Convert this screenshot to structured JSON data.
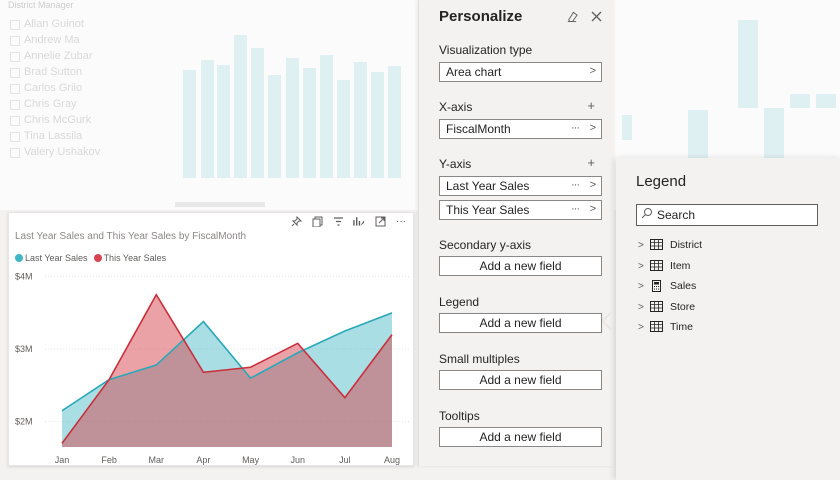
{
  "background": {
    "slicer_title": "District Manager",
    "slicer_items": [
      "Allan Guinot",
      "Andrew Ma",
      "Annelie Zubar",
      "Brad Sutton",
      "Carlos Grilo",
      "Chris Gray",
      "Chris McGurk",
      "Tina Lassila",
      "Valery Ushakov"
    ]
  },
  "visual": {
    "title": "Last Year Sales and This Year Sales by FiscalMonth",
    "header_icons": [
      "pin-icon",
      "copy-icon",
      "filter-icon",
      "personalize-icon",
      "focus-mode-icon",
      "more-options-icon"
    ]
  },
  "chart_data": {
    "type": "area",
    "title": "Last Year Sales and This Year Sales by FiscalMonth",
    "categories": [
      "Jan",
      "Feb",
      "Mar",
      "Apr",
      "May",
      "Jun",
      "Jul",
      "Aug"
    ],
    "series": [
      {
        "name": "Last Year Sales",
        "color": "#41b6c4",
        "values": [
          2.15,
          2.58,
          2.78,
          3.38,
          2.6,
          2.95,
          3.25,
          3.5
        ]
      },
      {
        "name": "This Year Sales",
        "color": "#d64550",
        "values": [
          1.7,
          2.58,
          3.75,
          2.68,
          2.75,
          3.08,
          2.33,
          3.2
        ]
      }
    ],
    "y_ticks": [
      "$2M",
      "$3M",
      "$4M"
    ],
    "y_tick_values": [
      2,
      3,
      4
    ],
    "ylim": [
      1.65,
      4.05
    ],
    "grid": true,
    "legend": "top-left"
  },
  "personalize": {
    "title": "Personalize",
    "visualization_type_label": "Visualization type",
    "visualization_type_value": "Area chart",
    "xaxis_label": "X-axis",
    "xaxis_value": "FiscalMonth",
    "yaxis_label": "Y-axis",
    "yaxis_values": [
      "Last Year Sales",
      "This Year Sales"
    ],
    "secondary_label": "Secondary y-axis",
    "legend_label": "Legend",
    "small_multiples_label": "Small multiples",
    "tooltips_label": "Tooltips",
    "add_field": "Add a new field",
    "plus": "+",
    "more": "···",
    "chevron": ">"
  },
  "legend_flyout": {
    "title": "Legend",
    "search_placeholder": "Search",
    "tables": [
      {
        "name": "District",
        "icon": "table-icon"
      },
      {
        "name": "Item",
        "icon": "table-icon"
      },
      {
        "name": "Sales",
        "icon": "calculator-icon"
      },
      {
        "name": "Store",
        "icon": "table-icon"
      },
      {
        "name": "Time",
        "icon": "table-icon"
      }
    ]
  }
}
